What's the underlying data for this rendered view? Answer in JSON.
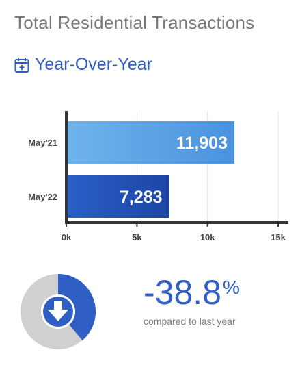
{
  "header": {
    "title": "Total Residential Transactions",
    "subtitle": "Year-Over-Year"
  },
  "chart_data": {
    "type": "bar",
    "orientation": "horizontal",
    "categories": [
      "May'21",
      "May'22"
    ],
    "values": [
      11903,
      7283
    ],
    "value_labels": [
      "11,903",
      "7,283"
    ],
    "xlim": [
      0,
      15000
    ],
    "xticks": [
      0,
      5000,
      10000,
      15000
    ],
    "xtick_labels": [
      "0k",
      "5k",
      "10k",
      "15k"
    ],
    "grid": true,
    "colors": [
      "#5aa3e4",
      "#2350b8"
    ]
  },
  "change": {
    "percent_value": "-38.8",
    "percent_sign": "%",
    "caption": "compared to last year",
    "fraction": 0.388,
    "direction": "down"
  },
  "colors": {
    "accent": "#2f5fc4",
    "donut_track": "#d0d0d0",
    "title_gray": "#7a7a7a"
  },
  "icons": {
    "subtitle_icon": "calendar-plus-icon",
    "donut_icon": "arrow-down-icon"
  }
}
